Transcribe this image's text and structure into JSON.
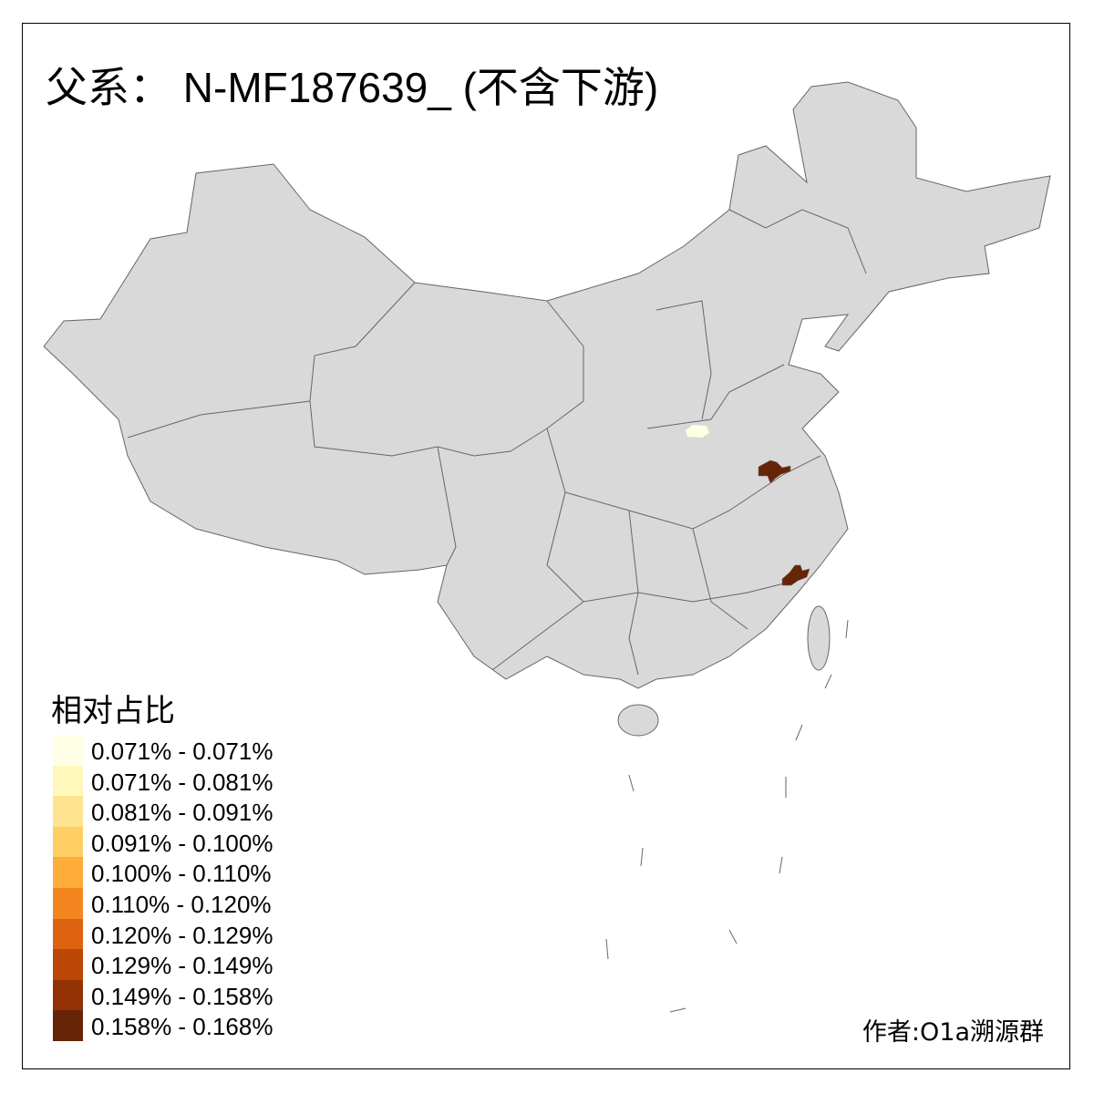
{
  "title": "父系： N-MF187639_ (不含下游)",
  "legend": {
    "title": "相对占比",
    "items": [
      {
        "label": "0.071% - 0.071%",
        "color": "#FFFFE5"
      },
      {
        "label": "0.071% - 0.081%",
        "color": "#FFF7BC"
      },
      {
        "label": "0.081% - 0.091%",
        "color": "#FEE391"
      },
      {
        "label": "0.091% - 0.100%",
        "color": "#FECE65"
      },
      {
        "label": "0.100% - 0.110%",
        "color": "#FEAC3A"
      },
      {
        "label": "0.110% - 0.120%",
        "color": "#F4861F"
      },
      {
        "label": "0.120% - 0.129%",
        "color": "#DE6210"
      },
      {
        "label": "0.129% - 0.149%",
        "color": "#BC4604"
      },
      {
        "label": "0.149% - 0.158%",
        "color": "#923204"
      },
      {
        "label": "0.158% - 0.168%",
        "color": "#662506"
      }
    ]
  },
  "map": {
    "base_color": "#D9D9D9",
    "border_color": "#666666",
    "highlighted_regions": [
      {
        "bin": "0.071% - 0.071%",
        "color": "#FFFFE5"
      },
      {
        "bin": "0.158% - 0.168%",
        "color": "#662506"
      },
      {
        "bin": "0.158% - 0.168%",
        "color": "#662506"
      }
    ]
  },
  "author": "作者:O1a溯源群"
}
